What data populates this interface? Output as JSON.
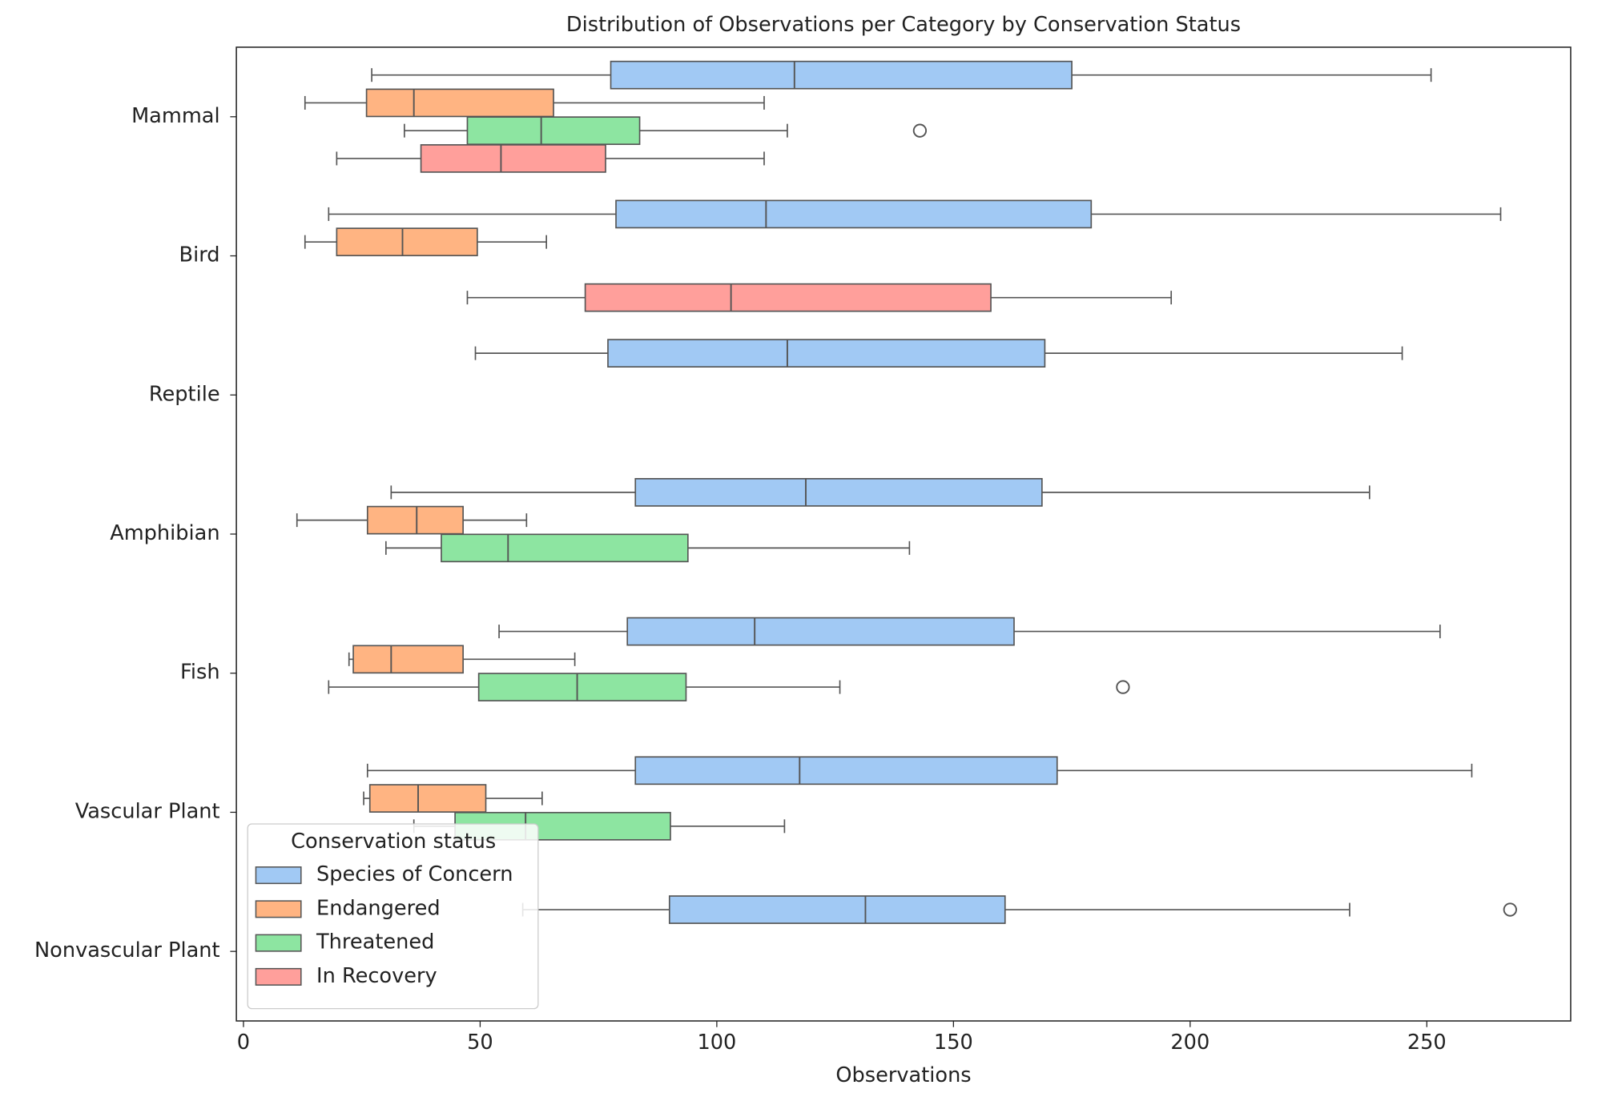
{
  "chart_data": {
    "type": "boxplot",
    "orientation": "horizontal",
    "title": "Distribution of Observations per Category by Conservation Status",
    "x_label": "Observations",
    "categories": [
      "Mammal",
      "Bird",
      "Reptile",
      "Amphibian",
      "Fish",
      "Vascular Plant",
      "Nonvascular Plant"
    ],
    "xlim": [
      -1.5,
      280.4
    ],
    "xticks": [
      0,
      50,
      100,
      150,
      200,
      250
    ],
    "legend_title": "Conservation status",
    "legend_position": "lower left",
    "series": [
      {
        "name": "Species of Concern",
        "color": "#a1c9f4",
        "low": [
          27.1,
          18.0,
          49.0,
          31.2,
          54.0,
          26.2,
          59.0
        ],
        "q1": [
          77.6,
          78.7,
          77.0,
          82.8,
          81.1,
          82.8,
          90.0
        ],
        "median": [
          116.4,
          110.4,
          114.9,
          118.8,
          108.0,
          117.5,
          131.4
        ],
        "q3": [
          175.0,
          179.1,
          169.3,
          168.7,
          162.8,
          171.9,
          160.9
        ],
        "high": [
          250.9,
          265.6,
          244.8,
          237.9,
          252.8,
          259.5,
          233.7
        ],
        "outliers": [
          [],
          [],
          [],
          [],
          [],
          [],
          [
            267.6
          ]
        ]
      },
      {
        "name": "Endangered",
        "color": "#ffb482",
        "low": [
          13.0,
          13.0,
          null,
          11.3,
          22.3,
          25.4,
          null
        ],
        "q1": [
          26.0,
          19.7,
          null,
          26.2,
          23.2,
          26.7,
          null
        ],
        "median": [
          36.0,
          33.6,
          null,
          36.6,
          31.2,
          36.9,
          null
        ],
        "q3": [
          65.5,
          49.4,
          null,
          46.4,
          46.4,
          51.2,
          null
        ],
        "high": [
          110.0,
          64.0,
          null,
          59.8,
          70.0,
          63.1,
          null
        ],
        "outliers": [
          [],
          [],
          [],
          [],
          [],
          [],
          []
        ]
      },
      {
        "name": "Threatened",
        "color": "#8de5a1",
        "low": [
          34.0,
          null,
          null,
          30.1,
          18.0,
          36.0,
          null
        ],
        "q1": [
          47.3,
          null,
          null,
          41.8,
          49.7,
          44.7,
          null
        ],
        "median": [
          62.9,
          null,
          null,
          55.9,
          70.5,
          59.6,
          null
        ],
        "q3": [
          83.7,
          null,
          null,
          93.9,
          93.5,
          90.2,
          null
        ],
        "high": [
          114.9,
          null,
          null,
          140.7,
          126.0,
          114.3,
          null
        ],
        "outliers": [
          [
            142.9
          ],
          [],
          [],
          [],
          [
            185.8
          ],
          [],
          []
        ]
      },
      {
        "name": "In Recovery",
        "color": "#ff9f9b",
        "low": [
          19.7,
          47.3,
          null,
          null,
          null,
          null,
          null
        ],
        "q1": [
          37.5,
          72.2,
          null,
          null,
          null,
          null,
          null
        ],
        "median": [
          54.4,
          103.0,
          null,
          null,
          null,
          null,
          null
        ],
        "q3": [
          76.5,
          157.9,
          null,
          null,
          null,
          null,
          null
        ],
        "high": [
          110.0,
          196.0,
          null,
          null,
          null,
          null,
          null
        ],
        "outliers": [
          [],
          [],
          [],
          [],
          [],
          [],
          []
        ]
      }
    ]
  }
}
